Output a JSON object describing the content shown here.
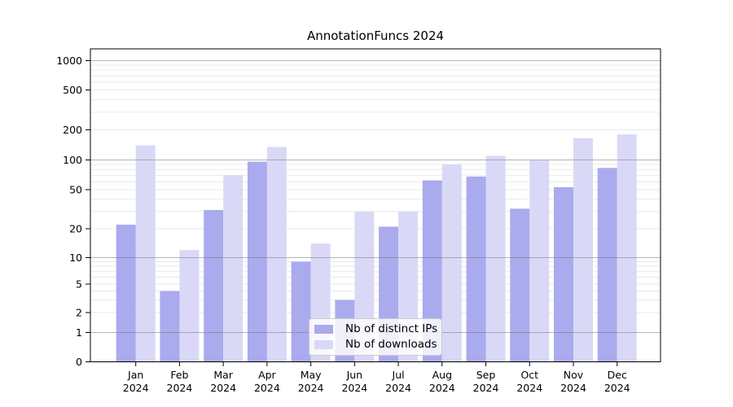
{
  "chart_data": {
    "type": "bar",
    "title": "AnnotationFuncs 2024",
    "categories": [
      "Jan",
      "Feb",
      "Mar",
      "Apr",
      "May",
      "Jun",
      "Jul",
      "Aug",
      "Sep",
      "Oct",
      "Nov",
      "Dec"
    ],
    "category_year": "2024",
    "series": [
      {
        "name": "Nb of distinct IPs",
        "color": "#aaaaee",
        "values": [
          22,
          4,
          31,
          96,
          9,
          3,
          21,
          62,
          68,
          32,
          53,
          83
        ]
      },
      {
        "name": "Nb of downloads",
        "color": "#d9d9f7",
        "values": [
          140,
          12,
          70,
          135,
          14,
          30,
          30,
          90,
          110,
          100,
          165,
          180
        ]
      }
    ],
    "y_axis": {
      "ticks": [
        0,
        1,
        2,
        5,
        10,
        20,
        50,
        100,
        200,
        500,
        1000
      ],
      "scale": "log-like",
      "top_value": 1320
    },
    "legend_position": "lower center",
    "grid": true
  },
  "colors": {
    "bar_distinct_ips": "#aaaaee",
    "bar_downloads": "#d9d9f7",
    "grid_minor": "#eaeaea",
    "grid_major": "rgba(120,120,120,0.55)",
    "axis": "#000000"
  }
}
